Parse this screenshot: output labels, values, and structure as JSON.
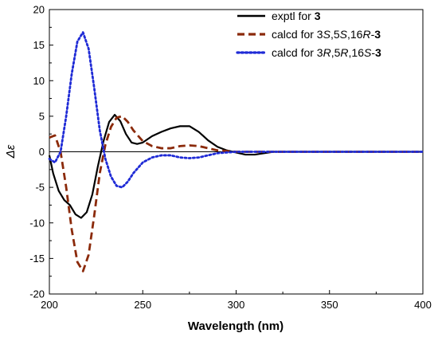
{
  "chart_data": {
    "type": "line",
    "title": "",
    "xlabel": "Wavelength (nm)",
    "ylabel": "Δε",
    "xlim": [
      200,
      400
    ],
    "ylim": [
      -20,
      20
    ],
    "x_ticks": [
      "200",
      "250",
      "300",
      "350",
      "400"
    ],
    "y_ticks": [
      "20",
      "15",
      "10",
      "5",
      "0",
      "-5",
      "-10",
      "-15",
      "-20"
    ],
    "grid": false,
    "zero_line": true,
    "legend_position": "top-right",
    "legend": [
      {
        "series_index": 0,
        "parts": [
          {
            "text": "exptl for ",
            "style": "normal"
          },
          {
            "text": "3",
            "style": "bold"
          }
        ]
      },
      {
        "series_index": 1,
        "parts": [
          {
            "text": "calcd for 3",
            "style": "normal"
          },
          {
            "text": "S",
            "style": "italic"
          },
          {
            "text": ",5",
            "style": "normal"
          },
          {
            "text": "S",
            "style": "italic"
          },
          {
            "text": ",16",
            "style": "normal"
          },
          {
            "text": "R",
            "style": "italic"
          },
          {
            "text": "-",
            "style": "normal"
          },
          {
            "text": "3",
            "style": "bold"
          }
        ]
      },
      {
        "series_index": 2,
        "parts": [
          {
            "text": "calcd for 3",
            "style": "normal"
          },
          {
            "text": "R",
            "style": "italic"
          },
          {
            "text": ",5",
            "style": "normal"
          },
          {
            "text": "R",
            "style": "italic"
          },
          {
            "text": ",16",
            "style": "normal"
          },
          {
            "text": "S",
            "style": "italic"
          },
          {
            "text": "-",
            "style": "normal"
          },
          {
            "text": "3",
            "style": "bold"
          }
        ]
      }
    ],
    "series": [
      {
        "name": "exptl for 3",
        "color": "#000000",
        "style": "solid",
        "points": [
          [
            200,
            -0.5
          ],
          [
            202,
            -3
          ],
          [
            205,
            -5.5
          ],
          [
            208,
            -6.8
          ],
          [
            211,
            -7.5
          ],
          [
            214,
            -8.8
          ],
          [
            217,
            -9.3
          ],
          [
            220,
            -8.5
          ],
          [
            223,
            -6
          ],
          [
            226,
            -2
          ],
          [
            229,
            1.5
          ],
          [
            232,
            4.2
          ],
          [
            235,
            5.2
          ],
          [
            238,
            4.3
          ],
          [
            241,
            2.5
          ],
          [
            244,
            1.3
          ],
          [
            247,
            1.1
          ],
          [
            250,
            1.3
          ],
          [
            255,
            2.2
          ],
          [
            260,
            2.8
          ],
          [
            265,
            3.3
          ],
          [
            270,
            3.6
          ],
          [
            275,
            3.6
          ],
          [
            280,
            2.8
          ],
          [
            285,
            1.6
          ],
          [
            290,
            0.7
          ],
          [
            295,
            0.2
          ],
          [
            300,
            -0.1
          ],
          [
            305,
            -0.4
          ],
          [
            310,
            -0.4
          ],
          [
            315,
            -0.2
          ],
          [
            320,
            0
          ],
          [
            330,
            0
          ],
          [
            340,
            0
          ],
          [
            360,
            0
          ],
          [
            380,
            0
          ],
          [
            400,
            0
          ]
        ]
      },
      {
        "name": "calcd for 3S,5S,16R-3",
        "color": "#8B2A0A",
        "style": "dashed",
        "points": [
          [
            200,
            2
          ],
          [
            203,
            2.3
          ],
          [
            206,
            0
          ],
          [
            209,
            -5
          ],
          [
            212,
            -11
          ],
          [
            215,
            -15.5
          ],
          [
            218,
            -16.8
          ],
          [
            221,
            -14.5
          ],
          [
            224,
            -9
          ],
          [
            227,
            -3
          ],
          [
            230,
            1
          ],
          [
            233,
            3.5
          ],
          [
            236,
            4.8
          ],
          [
            239,
            5
          ],
          [
            242,
            4.2
          ],
          [
            245,
            3
          ],
          [
            250,
            1.5
          ],
          [
            255,
            0.8
          ],
          [
            260,
            0.5
          ],
          [
            265,
            0.5
          ],
          [
            270,
            0.8
          ],
          [
            275,
            0.9
          ],
          [
            280,
            0.8
          ],
          [
            285,
            0.5
          ],
          [
            290,
            0.2
          ],
          [
            295,
            0.1
          ],
          [
            300,
            0
          ],
          [
            320,
            0
          ],
          [
            340,
            0
          ],
          [
            360,
            0
          ],
          [
            380,
            0
          ],
          [
            400,
            0
          ]
        ]
      },
      {
        "name": "calcd for 3R,5R,16S-3",
        "color": "#1F2BD6",
        "style": "dotted",
        "points": [
          [
            200,
            -1
          ],
          [
            203,
            -1.5
          ],
          [
            206,
            0
          ],
          [
            209,
            5
          ],
          [
            212,
            11
          ],
          [
            215,
            15.5
          ],
          [
            218,
            16.8
          ],
          [
            221,
            14.5
          ],
          [
            224,
            9
          ],
          [
            227,
            3
          ],
          [
            230,
            -1
          ],
          [
            233,
            -3.5
          ],
          [
            236,
            -4.8
          ],
          [
            239,
            -5
          ],
          [
            242,
            -4.2
          ],
          [
            245,
            -3
          ],
          [
            250,
            -1.5
          ],
          [
            255,
            -0.8
          ],
          [
            260,
            -0.5
          ],
          [
            265,
            -0.5
          ],
          [
            270,
            -0.8
          ],
          [
            275,
            -0.9
          ],
          [
            280,
            -0.8
          ],
          [
            285,
            -0.5
          ],
          [
            290,
            -0.2
          ],
          [
            295,
            -0.1
          ],
          [
            300,
            0
          ],
          [
            320,
            0
          ],
          [
            340,
            0
          ],
          [
            360,
            0
          ],
          [
            380,
            0
          ],
          [
            400,
            0
          ]
        ]
      }
    ]
  }
}
